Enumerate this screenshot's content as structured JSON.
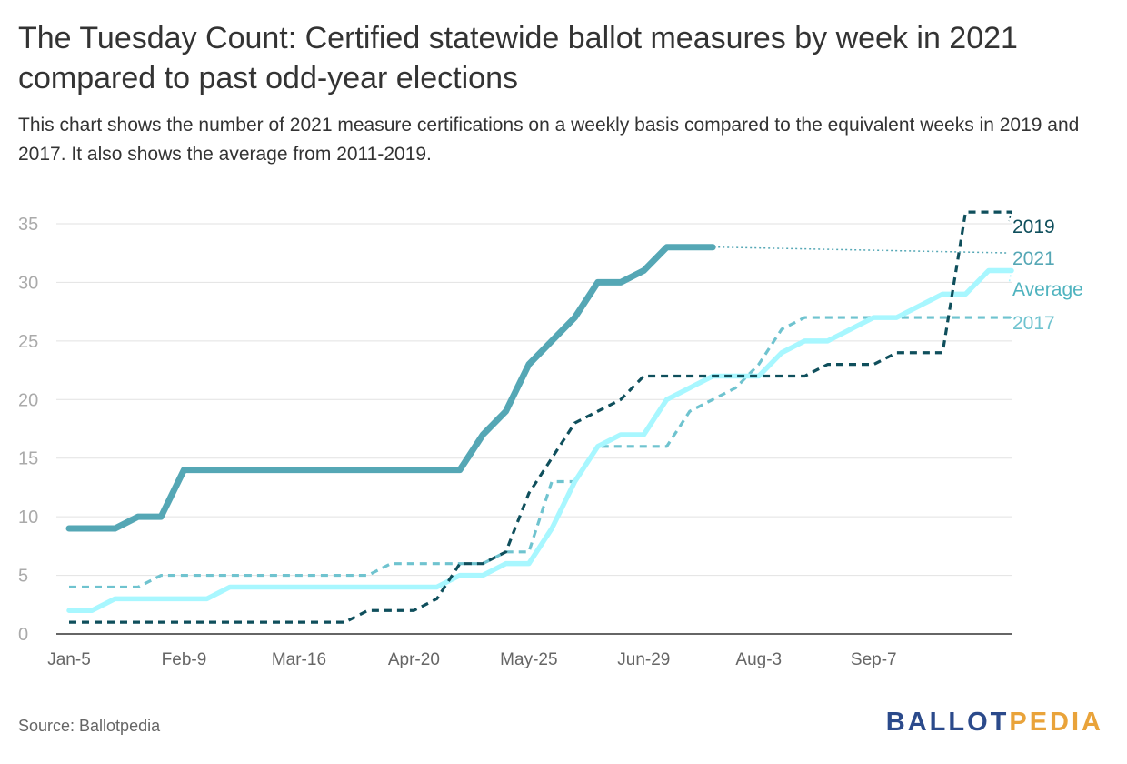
{
  "title": "The Tuesday Count: Certified statewide ballot measures by week in 2021 compared to past odd-year elections",
  "subtitle": "This chart shows the number of 2021 measure certifications on a weekly basis compared to the equivalent weeks in 2019 and 2017. It also shows the average from 2011-2019.",
  "source": "Source: Ballotpedia",
  "logo": {
    "part1": "BALLOT",
    "part2": "PEDIA"
  },
  "chart_data": {
    "type": "line",
    "title": "The Tuesday Count: Certified statewide ballot measures by week in 2021 compared to past odd-year elections",
    "xlabel": "",
    "ylabel": "",
    "ylim": [
      0,
      35
    ],
    "yticks": [
      0,
      5,
      10,
      15,
      20,
      25,
      30,
      35
    ],
    "week_count": 42,
    "xticks": [
      {
        "label": "Jan-5",
        "week": 0
      },
      {
        "label": "Feb-9",
        "week": 5
      },
      {
        "label": "Mar-16",
        "week": 10
      },
      {
        "label": "Apr-20",
        "week": 15
      },
      {
        "label": "May-25",
        "week": 20
      },
      {
        "label": "Jun-29",
        "week": 25
      },
      {
        "label": "Aug-3",
        "week": 30
      },
      {
        "label": "Sep-7",
        "week": 35
      }
    ],
    "grid": true,
    "series": [
      {
        "name": "2017",
        "color": "#6fc3cf",
        "style": "dashed",
        "values": [
          4,
          4,
          4,
          4,
          5,
          5,
          5,
          5,
          5,
          5,
          5,
          5,
          5,
          5,
          6,
          6,
          6,
          6,
          6,
          7,
          7,
          13,
          13,
          16,
          16,
          16,
          16,
          19,
          20,
          21,
          23,
          26,
          27,
          27,
          27,
          27,
          27,
          27,
          27,
          27,
          27,
          27
        ]
      },
      {
        "name": "Average",
        "color": "#a8f7ff",
        "style": "solid",
        "values": [
          2,
          2,
          3,
          3,
          3,
          3,
          3,
          4,
          4,
          4,
          4,
          4,
          4,
          4,
          4,
          4,
          4,
          5,
          5,
          6,
          6,
          9,
          13,
          16,
          17,
          17,
          20,
          21,
          22,
          22,
          22,
          24,
          25,
          25,
          26,
          27,
          27,
          28,
          29,
          29,
          31,
          31
        ]
      },
      {
        "name": "2019",
        "color": "#0f4f5c",
        "style": "dashed",
        "values": [
          1,
          1,
          1,
          1,
          1,
          1,
          1,
          1,
          1,
          1,
          1,
          1,
          1,
          2,
          2,
          2,
          3,
          6,
          6,
          7,
          12,
          15,
          18,
          19,
          20,
          22,
          22,
          22,
          22,
          22,
          22,
          22,
          22,
          23,
          23,
          23,
          24,
          24,
          24,
          36,
          36,
          36
        ]
      },
      {
        "name": "2021",
        "color": "#55a7b5",
        "style": "solid",
        "values": [
          9,
          9,
          9,
          10,
          10,
          14,
          14,
          14,
          14,
          14,
          14,
          14,
          14,
          14,
          14,
          14,
          14,
          14,
          17,
          19,
          23,
          25,
          27,
          30,
          30,
          31,
          33,
          33,
          33
        ]
      }
    ]
  }
}
